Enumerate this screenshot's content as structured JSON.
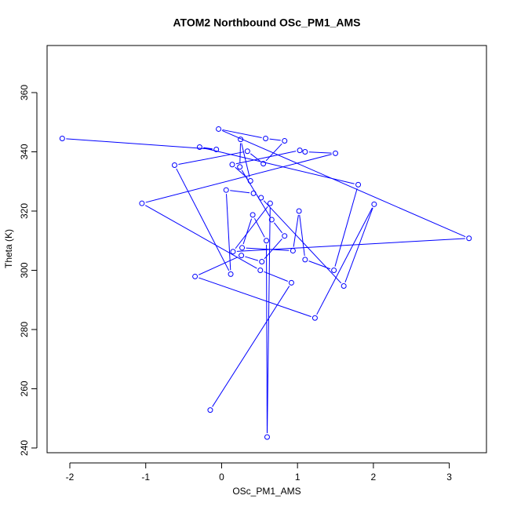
{
  "chart_data": {
    "type": "scatter",
    "title": "ATOM2 Northbound OSc_PM1_AMS",
    "x_label": "OSc_PM1_AMS",
    "y_label": "Theta (K)",
    "xlim": [
      -2.3,
      3.49
    ],
    "ylim": [
      238.4,
      375.9
    ],
    "xticks": [
      -2,
      -1,
      0,
      1,
      2,
      3
    ],
    "yticks": [
      240,
      260,
      280,
      300,
      320,
      340,
      360
    ],
    "series": [
      {
        "color": "#0000ff",
        "x": [
          -2.1,
          -0.07,
          -0.29,
          1.8,
          1.48,
          1.1,
          1.02,
          0.94,
          0.27,
          0.41,
          0.59,
          0.6,
          0.64,
          0.15,
          3.26,
          -0.04,
          0.58,
          0.83,
          0.55,
          0.34,
          -0.62,
          0.12,
          0.06,
          0.42,
          0.52,
          1.61,
          2.01,
          1.23,
          -0.35,
          0.26,
          0.53,
          0.83,
          0.66,
          0.24,
          0.25,
          0.38,
          0.14,
          1.03,
          1.1,
          1.5,
          -1.05,
          0.51,
          0.92,
          -0.15
        ],
        "values": [
          344.5,
          340.8,
          341.6,
          328.9,
          300.0,
          303.6,
          320.0,
          306.6,
          307.6,
          318.7,
          310.0,
          243.7,
          322.6,
          306.3,
          310.8,
          347.7,
          344.5,
          343.7,
          336.0,
          340.2,
          335.5,
          298.7,
          327.1,
          326.0,
          324.5,
          294.7,
          322.3,
          283.9,
          297.9,
          305.0,
          302.9,
          311.6,
          317.1,
          334.9,
          344.2,
          330.2,
          335.7,
          340.5,
          340.0,
          339.5,
          322.6,
          300.0,
          295.8,
          252.8
        ]
      }
    ]
  }
}
